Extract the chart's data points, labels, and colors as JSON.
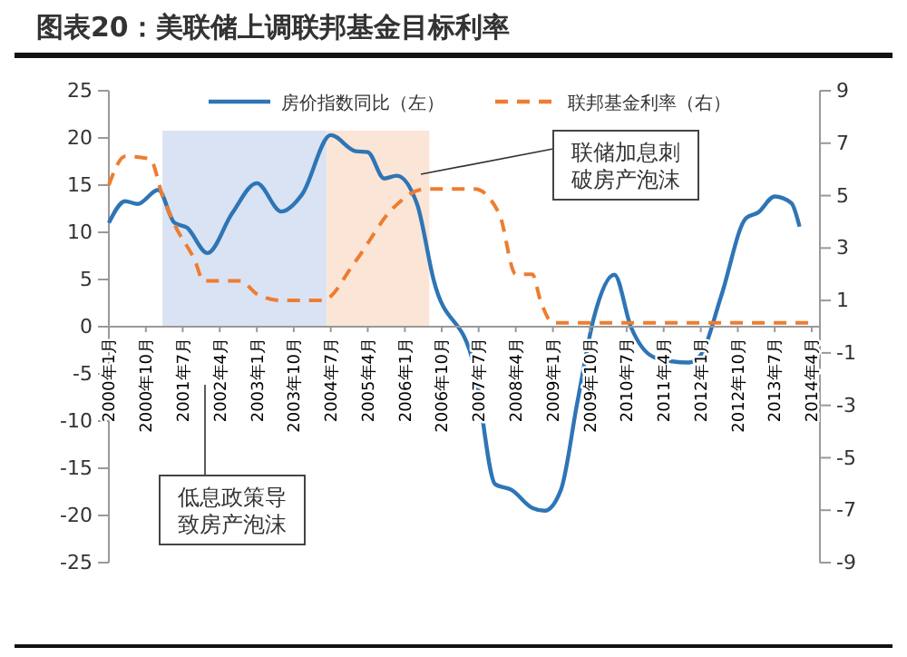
{
  "chart_data": {
    "type": "line",
    "title": "图表20：美联储上调联邦基金目标利率",
    "xlim": [
      "2000-01",
      "2014-06"
    ],
    "xticks": [
      {
        "value": "2000-01",
        "label": "2000年1月"
      },
      {
        "value": "2000-10",
        "label": "2000年10月"
      },
      {
        "value": "2001-07",
        "label": "2001年7月"
      },
      {
        "value": "2002-04",
        "label": "2002年4月"
      },
      {
        "value": "2003-01",
        "label": "2003年1月"
      },
      {
        "value": "2003-10",
        "label": "2003年10月"
      },
      {
        "value": "2004-07",
        "label": "2004年7月"
      },
      {
        "value": "2005-04",
        "label": "2005年4月"
      },
      {
        "value": "2006-01",
        "label": "2006年1月"
      },
      {
        "value": "2006-10",
        "label": "2006年10月"
      },
      {
        "value": "2007-07",
        "label": "2007年7月"
      },
      {
        "value": "2008-04",
        "label": "2008年4月"
      },
      {
        "value": "2009-01",
        "label": "2009年1月"
      },
      {
        "value": "2009-10",
        "label": "2009年10月"
      },
      {
        "value": "2010-07",
        "label": "2010年7月"
      },
      {
        "value": "2011-04",
        "label": "2011年4月"
      },
      {
        "value": "2012-01",
        "label": "2012年1月"
      },
      {
        "value": "2012-10",
        "label": "2012年10月"
      },
      {
        "value": "2013-07",
        "label": "2013年7月"
      },
      {
        "value": "2014-04",
        "label": "2014年4月"
      }
    ],
    "ylim": [
      -25,
      25
    ],
    "yticks": [
      -25,
      -20,
      -15,
      -10,
      -5,
      0,
      5,
      10,
      15,
      20,
      25
    ],
    "y2lim": [
      -9,
      9
    ],
    "y2ticks": [
      -9,
      -7,
      -5,
      -3,
      -1,
      1,
      3,
      5,
      7,
      9
    ],
    "legend": "top",
    "grid": false,
    "series": [
      {
        "name": "房价指数同比（左）",
        "color": "#2e75b6",
        "line_style": "solid",
        "x": [
          "2000-01",
          "2000-05",
          "2000-08",
          "2001-01",
          "2001-05",
          "2001-08",
          "2002-01",
          "2002-07",
          "2003-01",
          "2003-07",
          "2003-12",
          "2004-07",
          "2005-01",
          "2005-04",
          "2005-08",
          "2005-11",
          "2006-04",
          "2006-08",
          "2007-06",
          "2007-11",
          "2008-03",
          "2008-08",
          "2008-11",
          "2009-03",
          "2009-07",
          "2009-11",
          "2010-04",
          "2010-08",
          "2011-02",
          "2011-10",
          "2012-01",
          "2012-06",
          "2012-12",
          "2013-03",
          "2013-07",
          "2013-11",
          "2014-01"
        ],
        "values": [
          11,
          13.3,
          13,
          14.5,
          11,
          10.5,
          7.8,
          12,
          15.2,
          12.2,
          14,
          20.3,
          18.6,
          18.5,
          15.7,
          16,
          13,
          5,
          -4.4,
          -16.7,
          -17.3,
          -19.2,
          -19.5,
          -17.3,
          -8,
          1,
          5.5,
          0,
          -3.3,
          -3.8,
          -3,
          3.3,
          11.5,
          12.1,
          13.8,
          13.1,
          10.6
        ]
      },
      {
        "name": "联邦基金利率（右）",
        "color": "#ed7d31",
        "line_style": "dashed",
        "axis": "y2",
        "x": [
          "2000-01",
          "2000-05",
          "2000-11",
          "2001-02",
          "2001-05",
          "2001-10",
          "2001-12",
          "2002-09",
          "2003-01",
          "2003-07",
          "2004-05",
          "2005-01",
          "2005-10",
          "2006-06",
          "2007-06",
          "2007-12",
          "2008-04",
          "2008-08",
          "2008-10",
          "2009-01",
          "2014-04"
        ],
        "values": [
          5.4,
          6.5,
          6.4,
          5,
          3.9,
          2.5,
          1.75,
          1.75,
          1.25,
          1,
          1,
          2.5,
          4.5,
          5.25,
          5.25,
          4.3,
          2,
          2,
          1,
          0.15,
          0.15
        ]
      }
    ],
    "bands": [
      {
        "axis": "x",
        "from": "2001-02",
        "to": "2004-06",
        "color": "#dae3f3"
      },
      {
        "axis": "x",
        "from": "2004-06",
        "to": "2006-07",
        "color": "#fbe5d6"
      }
    ],
    "annotations": [
      "联储加息刺破房产泡沫",
      "低息政策导致房产泡沫"
    ]
  }
}
